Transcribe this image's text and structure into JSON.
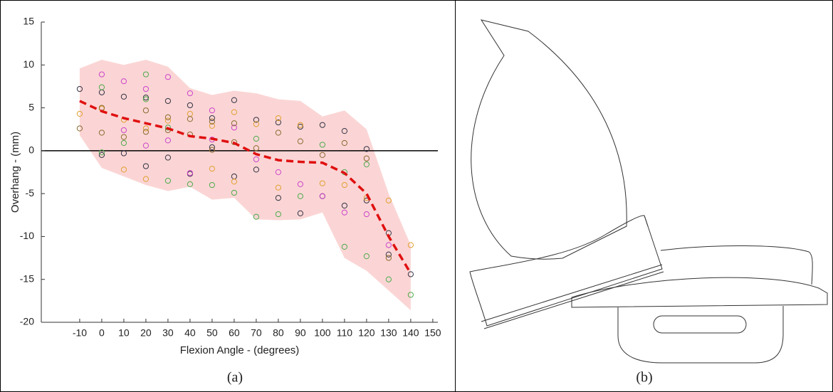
{
  "chart_data": {
    "type": "scatter",
    "xlabel": "Flexion Angle - (degrees)",
    "ylabel": "Overhang - (mm)",
    "xlim": [
      -27.4,
      152.3
    ],
    "ylim": [
      -20,
      15
    ],
    "xticks": [
      -10,
      0,
      10,
      20,
      30,
      40,
      50,
      60,
      70,
      80,
      90,
      100,
      110,
      120,
      130,
      140,
      150
    ],
    "yticks": [
      -20,
      -15,
      -10,
      -5,
      0,
      5,
      10,
      15
    ],
    "hline": 0,
    "band": {
      "color": "#fbd5d5",
      "x": [
        -10,
        0,
        10,
        20,
        30,
        40,
        50,
        60,
        70,
        80,
        90,
        100,
        110,
        120,
        130,
        140
      ],
      "upper": [
        9.6,
        10.6,
        10,
        10.6,
        9.8,
        7.3,
        6.5,
        7,
        6.7,
        6,
        5.8,
        4,
        4.7,
        2.5,
        -5,
        -11
      ],
      "lower": [
        1.8,
        -2,
        -3,
        -4,
        -4.7,
        -4.2,
        -5.7,
        -5.5,
        -8,
        -8.1,
        -8,
        -7.2,
        -12.5,
        -14,
        -16.3,
        -18.6
      ]
    },
    "mean": {
      "color": "#e01010",
      "x": [
        -10,
        0,
        10,
        20,
        30,
        40,
        50,
        60,
        70,
        80,
        90,
        100,
        110,
        120,
        130,
        140
      ],
      "values": [
        5.8,
        4.6,
        3.8,
        3.2,
        2.6,
        1.7,
        1.4,
        0.9,
        -0.4,
        -1.1,
        -1.3,
        -1.4,
        -2.6,
        -5,
        -10,
        -14.3
      ]
    },
    "series": [
      {
        "color": "#333344",
        "x": [
          -10,
          0,
          10,
          20,
          30,
          40,
          50,
          60,
          70,
          80,
          90,
          100,
          110,
          120,
          130,
          140,
          0,
          10,
          20,
          30,
          40,
          50,
          60,
          70,
          80,
          90,
          100,
          110,
          120,
          130
        ],
        "values": [
          7.2,
          6.8,
          6.3,
          6.2,
          5.8,
          5.3,
          3.8,
          5.9,
          3.6,
          3.3,
          2.8,
          3.0,
          2.3,
          0.2,
          -12.1,
          -14.4,
          -0.5,
          -0.3,
          -1.8,
          -0.8,
          -2.7,
          0.4,
          -3,
          -2.2,
          -5.5,
          -7.3,
          -5.3,
          -6.4,
          -5.8,
          -9.6
        ]
      },
      {
        "color": "#4caa4c",
        "x": [
          0,
          10,
          20,
          30,
          40,
          50,
          60,
          70,
          80,
          90,
          100,
          110,
          120,
          130,
          140,
          0,
          20,
          30,
          70,
          110,
          120
        ],
        "values": [
          7.4,
          0.9,
          8.9,
          2.7,
          -3.9,
          -4,
          -4.9,
          -7.7,
          -7.4,
          -5.3,
          0.7,
          -11.2,
          -12.3,
          -15,
          -16.8,
          -0.2,
          6.0,
          -3.5,
          1.4,
          -2.5,
          -1.6
        ]
      },
      {
        "color": "#cc44cc",
        "x": [
          0,
          10,
          20,
          30,
          40,
          50,
          60,
          70,
          80,
          90,
          100,
          110,
          120,
          130,
          10,
          20,
          30,
          40,
          50
        ],
        "values": [
          8.9,
          8.1,
          7.2,
          8.6,
          6.7,
          4.7,
          2.7,
          -1,
          -2.5,
          -3.9,
          -5.3,
          -7.2,
          -7.4,
          -11,
          2.4,
          0.6,
          1.2,
          -2.6,
          1.3
        ]
      },
      {
        "color": "#e0a030",
        "x": [
          -10,
          0,
          10,
          20,
          30,
          40,
          50,
          60,
          70,
          80,
          90,
          100,
          110,
          120,
          130,
          140,
          10,
          20,
          50,
          60,
          80
        ],
        "values": [
          4.3,
          4.9,
          -2.2,
          -3.3,
          3.5,
          4.3,
          2.9,
          4.5,
          3.1,
          3.8,
          3.0,
          -3.8,
          -4.0,
          -5.5,
          -5.8,
          -11,
          3.6,
          2.6,
          -2.1,
          -3.6,
          -4.3
        ]
      },
      {
        "color": "#8a6a30",
        "x": [
          -10,
          0,
          10,
          20,
          30,
          40,
          50,
          60,
          70,
          80,
          90,
          100,
          110,
          120,
          130,
          0,
          20,
          30,
          40,
          50,
          60
        ],
        "values": [
          2.6,
          2.1,
          1.6,
          2.2,
          3.9,
          3.7,
          3.4,
          1,
          0.3,
          2.1,
          1.1,
          -0.5,
          0.9,
          -0.9,
          -12.5,
          5.0,
          4.7,
          2.4,
          1.9,
          0.1,
          3.2
        ]
      }
    ]
  },
  "figure": {
    "captions": [
      "(a)",
      "(b)"
    ]
  }
}
